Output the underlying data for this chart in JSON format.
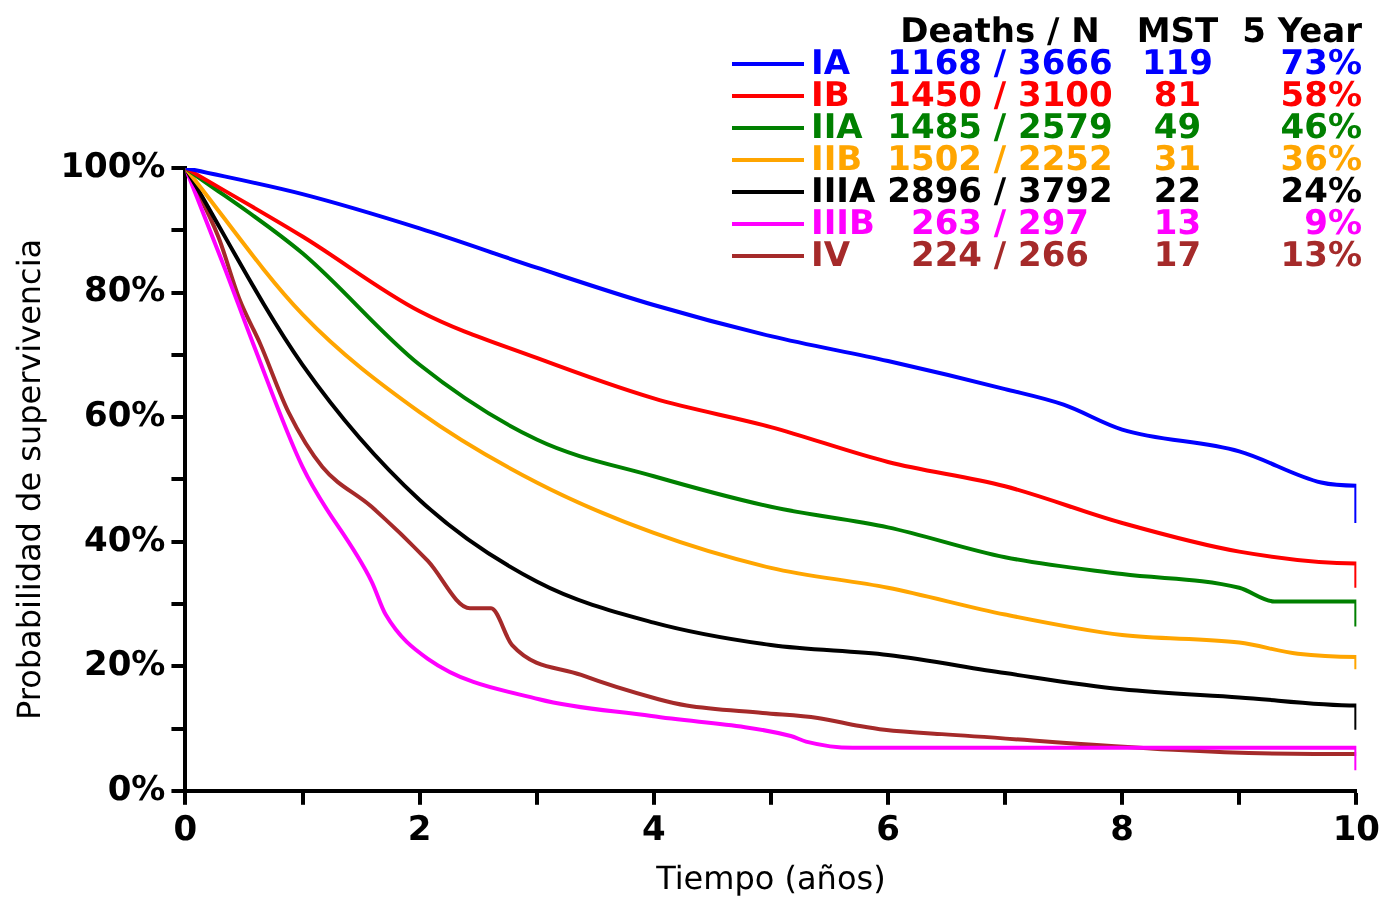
{
  "chart_data": {
    "type": "line",
    "xlabel": "Tiempo (años)",
    "ylabel": "Probabilidad de supervivencia",
    "xlim": [
      0,
      10
    ],
    "ylim": [
      0,
      100
    ],
    "xticks": [
      0,
      {
        "value": 1,
        "label": null
      },
      2,
      {
        "value": 3,
        "label": null
      },
      4,
      {
        "value": 5,
        "label": null
      },
      6,
      {
        "value": 7,
        "label": null
      },
      8,
      {
        "value": 9,
        "label": null
      },
      10
    ],
    "yticks": [
      {
        "value": 0,
        "label": "0%"
      },
      {
        "value": 10,
        "label": null
      },
      {
        "value": 20,
        "label": "20%"
      },
      {
        "value": 30,
        "label": null
      },
      {
        "value": 40,
        "label": "40%"
      },
      {
        "value": 50,
        "label": null
      },
      {
        "value": 60,
        "label": "60%"
      },
      {
        "value": 70,
        "label": null
      },
      {
        "value": 80,
        "label": "80%"
      },
      {
        "value": 90,
        "label": null
      },
      {
        "value": 100,
        "label": "100%"
      }
    ],
    "grid": false,
    "legend": "top right",
    "marker": "none",
    "line_style": "solid",
    "annotations": [
      "Deaths / N",
      "MST",
      "5 Year",
      "1168 / 3666",
      "119",
      "73%",
      "1450 / 3100",
      "81",
      "58%",
      "1485 / 2579",
      "49",
      "46%",
      "1502 / 2252",
      "31",
      "36%",
      "2896 / 3792",
      "22",
      "24%",
      "263 / 297",
      "13",
      "9%",
      "224 / 266",
      "17",
      "13%"
    ],
    "series": [
      {
        "name": "IA",
        "color": "#0000ff",
        "x": [
          0,
          1,
          2,
          3,
          4,
          5,
          6,
          7,
          7.5,
          8,
          9,
          9.7,
          10,
          10
        ],
        "values": [
          100,
          95.8,
          90.3,
          84,
          78,
          73,
          69,
          64.5,
          62,
          58,
          54.5,
          49.5,
          49,
          43
        ]
      },
      {
        "name": "IB",
        "color": "#ff0000",
        "x": [
          0,
          1,
          2,
          3,
          4,
          5,
          6,
          7,
          8,
          9,
          10,
          10
        ],
        "values": [
          100,
          89,
          77,
          69.5,
          63,
          58.4,
          52.8,
          48.9,
          43,
          38.4,
          36.5,
          32.6
        ]
      },
      {
        "name": "IIA",
        "color": "#008000",
        "x": [
          0,
          1,
          2,
          3,
          4,
          5,
          6,
          7,
          8,
          9,
          9.3,
          10,
          10
        ],
        "values": [
          100,
          86.3,
          68.4,
          56.4,
          50.5,
          45.6,
          42.3,
          37.5,
          34.8,
          32.6,
          30.4,
          30.4,
          26.4
        ]
      },
      {
        "name": "IIB",
        "color": "#ffa500",
        "x": [
          0,
          1,
          2,
          3,
          4,
          5,
          6,
          7,
          8,
          9,
          9.5,
          10,
          10
        ],
        "values": [
          100,
          76.5,
          60.8,
          49.5,
          41.4,
          35.8,
          32.6,
          28.3,
          25,
          23.8,
          22,
          21.5,
          19.5
        ]
      },
      {
        "name": "IIIA",
        "color": "#000000",
        "x": [
          0,
          1,
          2,
          3,
          4,
          5,
          6,
          7,
          8,
          9,
          10,
          10
        ],
        "values": [
          100,
          68.4,
          46.7,
          33.6,
          27,
          23.4,
          21.8,
          18.9,
          16.3,
          15,
          13.7,
          9.8
        ]
      },
      {
        "name": "IIIB",
        "color": "#ff00ff",
        "x": [
          0,
          0.34,
          0.58,
          1,
          1.59,
          1.71,
          2.07,
          3.02,
          3.98,
          5.17,
          5.3,
          5.7,
          10,
          10
        ],
        "values": [
          100,
          83.7,
          71.7,
          52,
          33.6,
          28.3,
          21.2,
          14.7,
          12,
          8.8,
          7.9,
          6.9,
          6.9,
          3.3
        ]
      },
      {
        "name": "IV",
        "color": "#a52a2a",
        "x": [
          0,
          0.28,
          0.46,
          0.64,
          0.88,
          1.17,
          1.59,
          2.07,
          2.43,
          2.61,
          2.79,
          3.38,
          4.04,
          4.28,
          4.93,
          5.4,
          5.76,
          5.97,
          6.46,
          9.64,
          10
        ],
        "values": [
          100,
          89,
          79,
          71.7,
          60.8,
          52,
          45.6,
          36.9,
          29.3,
          29.3,
          23.4,
          18.6,
          14.7,
          13.7,
          12.5,
          11.7,
          10.4,
          9.8,
          9.1,
          5.9,
          5.9
        ]
      }
    ]
  }
}
